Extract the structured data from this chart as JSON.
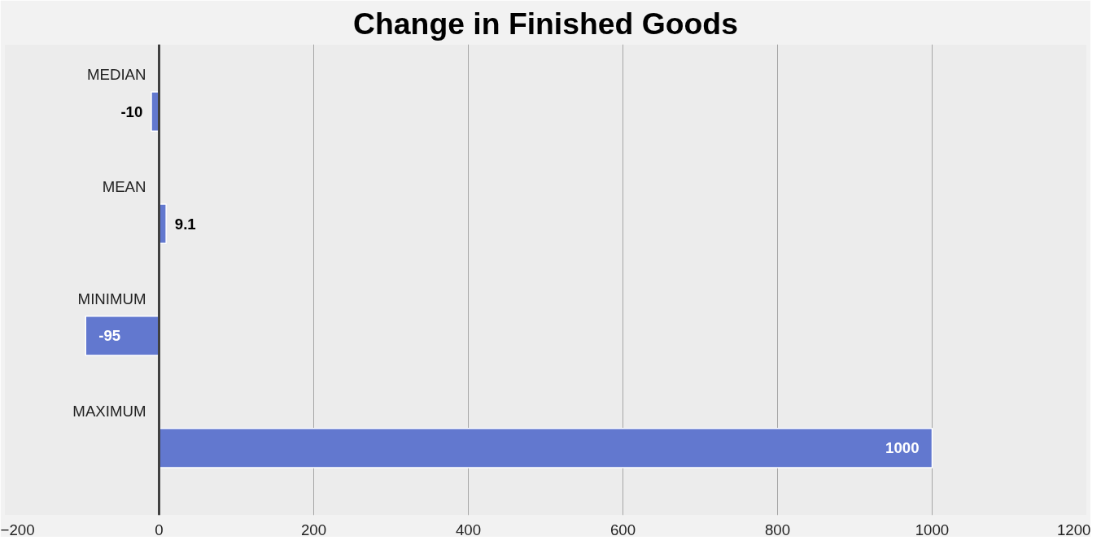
{
  "chart_data": {
    "type": "bar",
    "orientation": "horizontal",
    "title": "Change in Finished Goods",
    "categories": [
      "MEDIAN",
      "MEAN",
      "MINIMUM",
      "MAXIMUM"
    ],
    "values": [
      -10,
      9.1,
      -95,
      1000
    ],
    "color": "#6278cf",
    "xlim": [
      -200,
      1200
    ],
    "xticks": [
      -200,
      0,
      200,
      400,
      600,
      800,
      1000,
      1200
    ],
    "grid": "x",
    "data_labels": true
  }
}
